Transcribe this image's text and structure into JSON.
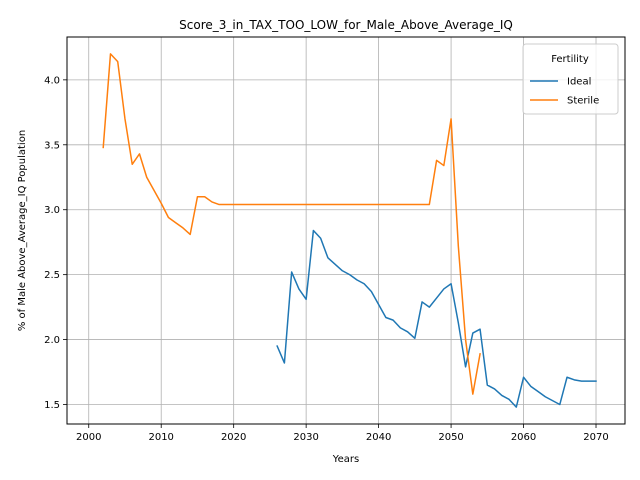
{
  "chart_data": {
    "type": "line",
    "title": "Score_3_in_TAX_TOO_LOW_for_Male_Above_Average_IQ",
    "xlabel": "Years",
    "ylabel": "% of Male Above_Average_IQ Population",
    "xlim": [
      1997,
      2074
    ],
    "ylim": [
      1.35,
      4.33
    ],
    "xticks": [
      2000,
      2010,
      2020,
      2030,
      2040,
      2050,
      2060,
      2070
    ],
    "yticks": [
      1.5,
      2.0,
      2.5,
      3.0,
      3.5,
      4.0
    ],
    "xtick_labels": [
      "2000",
      "2010",
      "2020",
      "2030",
      "2040",
      "2050",
      "2060",
      "2070"
    ],
    "ytick_labels": [
      "1.5",
      "2.0",
      "2.5",
      "3.0",
      "3.5",
      "4.0"
    ],
    "grid": true,
    "legend": {
      "title": "Fertility",
      "placement": "top-right"
    },
    "series": [
      {
        "name": "Ideal",
        "color": "#1f77b4",
        "x": [
          2026,
          2027,
          2028,
          2029,
          2030,
          2031,
          2032,
          2033,
          2034,
          2035,
          2036,
          2037,
          2038,
          2039,
          2040,
          2041,
          2042,
          2043,
          2044,
          2045,
          2046,
          2047,
          2048,
          2049,
          2050,
          2051,
          2052,
          2053,
          2054,
          2055,
          2056,
          2057,
          2058,
          2059,
          2060,
          2061,
          2062,
          2063,
          2064,
          2065,
          2066,
          2067,
          2068,
          2069,
          2070
        ],
        "y": [
          1.95,
          1.82,
          2.52,
          2.39,
          2.31,
          2.84,
          2.78,
          2.63,
          2.58,
          2.53,
          2.5,
          2.46,
          2.43,
          2.37,
          2.27,
          2.17,
          2.15,
          2.09,
          2.06,
          2.01,
          2.29,
          2.25,
          2.32,
          2.39,
          2.43,
          2.13,
          1.79,
          2.05,
          2.08,
          1.65,
          1.62,
          1.57,
          1.54,
          1.48,
          1.71,
          1.64,
          1.6,
          1.56,
          1.53,
          1.5,
          1.71,
          1.69,
          1.68,
          1.68,
          1.68
        ]
      },
      {
        "name": "Sterile",
        "color": "#ff7f0e",
        "x": [
          2002,
          2003,
          2004,
          2005,
          2006,
          2007,
          2008,
          2009,
          2010,
          2011,
          2012,
          2013,
          2014,
          2015,
          2016,
          2017,
          2018,
          2019,
          2020,
          2021,
          2022,
          2023,
          2024,
          2025,
          2026,
          2027,
          2028,
          2029,
          2030,
          2031,
          2032,
          2033,
          2034,
          2035,
          2036,
          2037,
          2038,
          2039,
          2040,
          2041,
          2042,
          2043,
          2044,
          2045,
          2046,
          2047,
          2048,
          2049,
          2050,
          2051,
          2052,
          2053,
          2054
        ],
        "y": [
          3.48,
          4.2,
          4.14,
          3.7,
          3.35,
          3.43,
          3.25,
          3.15,
          3.05,
          2.94,
          2.9,
          2.86,
          2.81,
          3.1,
          3.1,
          3.06,
          3.04,
          3.04,
          3.04,
          3.04,
          3.04,
          3.04,
          3.04,
          3.04,
          3.04,
          3.04,
          3.04,
          3.04,
          3.04,
          3.04,
          3.04,
          3.04,
          3.04,
          3.04,
          3.04,
          3.04,
          3.04,
          3.04,
          3.04,
          3.04,
          3.04,
          3.04,
          3.04,
          3.04,
          3.04,
          3.04,
          3.38,
          3.34,
          3.7,
          2.72,
          2.0,
          1.58,
          1.89
        ]
      }
    ]
  }
}
